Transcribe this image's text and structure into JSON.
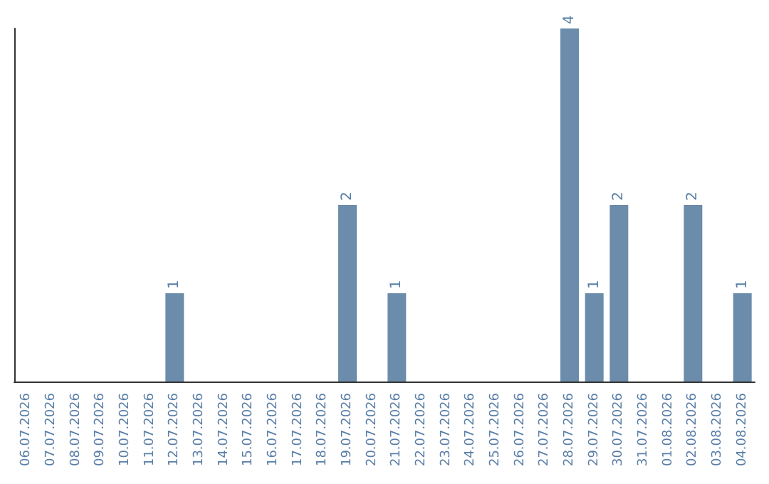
{
  "chart_data": {
    "type": "bar",
    "categories": [
      "06.07.2026",
      "07.07.2026",
      "08.07.2026",
      "09.07.2026",
      "10.07.2026",
      "11.07.2026",
      "12.07.2026",
      "13.07.2026",
      "14.07.2026",
      "15.07.2026",
      "16.07.2026",
      "17.07.2026",
      "18.07.2026",
      "19.07.2026",
      "20.07.2026",
      "21.07.2026",
      "22.07.2026",
      "23.07.2026",
      "24.07.2026",
      "25.07.2026",
      "26.07.2026",
      "27.07.2026",
      "28.07.2026",
      "29.07.2026",
      "30.07.2026",
      "31.07.2026",
      "01.08.2026",
      "02.08.2026",
      "03.08.2026",
      "04.08.2026"
    ],
    "values": [
      0,
      0,
      0,
      0,
      0,
      0,
      1,
      0,
      0,
      0,
      0,
      0,
      0,
      2,
      0,
      1,
      0,
      0,
      0,
      0,
      0,
      0,
      4,
      1,
      2,
      0,
      0,
      2,
      0,
      1
    ],
    "value_labels": [
      null,
      null,
      null,
      null,
      null,
      null,
      "1",
      null,
      null,
      null,
      null,
      null,
      null,
      "2",
      null,
      "1",
      null,
      null,
      null,
      null,
      null,
      null,
      "4",
      "1",
      "2",
      null,
      null,
      "2",
      null,
      "1"
    ],
    "color": "#6b8cab",
    "tick_labels": "x"
  }
}
